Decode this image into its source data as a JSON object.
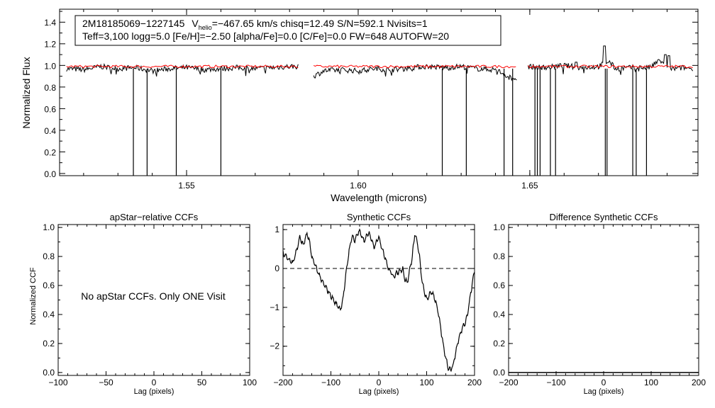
{
  "chart_data": [
    {
      "type": "line",
      "xlabel": "Wavelength (microns)",
      "ylabel": "Normalized Flux",
      "xlim": [
        1.513,
        1.699
      ],
      "ylim": [
        -0.02,
        1.52
      ],
      "xticks": [
        1.55,
        1.6,
        1.65
      ],
      "xtick_labels": [
        "1.55",
        "1.60",
        "1.65"
      ],
      "yticks": [
        0.0,
        0.2,
        0.4,
        0.6,
        0.8,
        1.0,
        1.2,
        1.4
      ],
      "ytick_labels": [
        "0.0",
        "0.2",
        "0.4",
        "0.6",
        "0.8",
        "1.0",
        "1.2",
        "1.4"
      ],
      "info_box": {
        "star_id": "2M18185069−1227145",
        "v_label": "V",
        "v_sub": "helio",
        "v_rest": "=−467.65 km/s  chisq=12.49  S/N=592.1  Nvisits=1",
        "line2": "Teff=3,100 logg=5.0 [Fe/H]=−2.50 [alpha/Fe]=0.0 [C/Fe]=0.0 FW=648 AUTOFW=20"
      },
      "chips": [
        [
          1.515,
          1.5825
        ],
        [
          1.587,
          1.6462
        ],
        [
          1.6495,
          1.6975
        ]
      ],
      "observed_anchors": [
        [
          [
            1.515,
            0.97
          ],
          [
            1.52,
            0.96
          ],
          [
            1.525,
            0.99
          ],
          [
            1.53,
            0.97
          ],
          [
            1.535,
            0.98
          ],
          [
            1.54,
            0.95
          ],
          [
            1.545,
            0.97
          ],
          [
            1.55,
            0.98
          ],
          [
            1.555,
            0.96
          ],
          [
            1.56,
            0.97
          ],
          [
            1.565,
            0.98
          ],
          [
            1.57,
            0.97
          ],
          [
            1.575,
            0.98
          ],
          [
            1.58,
            0.99
          ],
          [
            1.5825,
            0.99
          ]
        ],
        [
          [
            1.587,
            0.9
          ],
          [
            1.59,
            0.95
          ],
          [
            1.595,
            0.96
          ],
          [
            1.6,
            0.95
          ],
          [
            1.605,
            0.97
          ],
          [
            1.61,
            0.96
          ],
          [
            1.615,
            0.98
          ],
          [
            1.62,
            0.99
          ],
          [
            1.625,
            0.98
          ],
          [
            1.63,
            0.99
          ],
          [
            1.635,
            0.97
          ],
          [
            1.64,
            0.96
          ],
          [
            1.642,
            0.93
          ],
          [
            1.644,
            0.89
          ],
          [
            1.646,
            0.88
          ]
        ],
        [
          [
            1.6495,
            0.99
          ],
          [
            1.655,
            0.98
          ],
          [
            1.66,
            1.0
          ],
          [
            1.665,
            0.98
          ],
          [
            1.67,
            0.99
          ],
          [
            1.673,
            1.04
          ],
          [
            1.675,
            0.97
          ],
          [
            1.68,
            0.98
          ],
          [
            1.685,
            0.98
          ],
          [
            1.688,
            1.05
          ],
          [
            1.69,
            0.96
          ],
          [
            1.695,
            0.98
          ],
          [
            1.6975,
            0.97
          ]
        ]
      ],
      "emission_spikes": [
        [
          1.6718,
          1.18
        ],
        [
          1.6905,
          1.09
        ],
        [
          1.6895,
          1.1
        ],
        [
          1.6635,
          1.03
        ]
      ],
      "bad_pixel_dips": [
        1.5345,
        1.5385,
        1.547,
        1.56,
        1.6245,
        1.6315,
        1.6425,
        1.645,
        1.6515,
        1.6522,
        1.653,
        1.656,
        1.6575,
        1.672,
        1.6725,
        1.68,
        1.681,
        1.684
      ],
      "model": {
        "name": "model",
        "value": 0.99,
        "color": "#ff0000"
      }
    },
    {
      "type": "line",
      "title": "apStar−relative CCFs",
      "xlabel": "Lag (pixels)",
      "ylabel": "Normalized CCF",
      "xlim": [
        -100,
        100
      ],
      "ylim": [
        -0.02,
        1.02
      ],
      "xticks": [
        -100,
        -50,
        0,
        50,
        100
      ],
      "xtick_labels": [
        "−100",
        "−50",
        "0",
        "50",
        "100"
      ],
      "yticks": [
        0.0,
        0.2,
        0.4,
        0.6,
        0.8,
        1.0
      ],
      "ytick_labels": [
        "0.0",
        "0.2",
        "0.4",
        "0.6",
        "0.8",
        "1.0"
      ],
      "annotation": "No apStar CCFs.  Only ONE Visit"
    },
    {
      "type": "line",
      "title": "Synthetic CCFs",
      "xlabel": "Lag (pixels)",
      "xlim": [
        -200,
        200
      ],
      "ylim": [
        -2.75,
        1.13
      ],
      "xticks": [
        -200,
        -100,
        0,
        100,
        200
      ],
      "xtick_labels": [
        "−200",
        "−100",
        "0",
        "100",
        "200"
      ],
      "yticks": [
        -2,
        -1,
        0,
        1
      ],
      "ytick_labels": [
        "−2",
        "−1",
        "0",
        "1"
      ],
      "zero_line": 0,
      "series": [
        {
          "x": [
            -200,
            -190,
            -180,
            -172,
            -165,
            -158,
            -150,
            -145,
            -140,
            -130,
            -120,
            -110,
            -100,
            -90,
            -80,
            -75,
            -70,
            -65,
            -60,
            -55,
            -50,
            -45,
            -40,
            -35,
            -30,
            -25,
            -20,
            -15,
            -10,
            -5,
            0,
            5,
            10,
            15,
            20,
            25,
            30,
            40,
            50,
            55,
            60,
            65,
            70,
            75,
            80,
            85,
            90,
            95,
            100,
            105,
            110,
            115,
            120,
            125,
            130,
            135,
            140,
            145,
            150,
            155,
            160,
            165,
            170,
            175,
            180,
            185,
            190,
            195,
            200
          ],
          "y": [
            0.4,
            0.25,
            0.15,
            0.45,
            0.8,
            0.6,
            0.9,
            0.7,
            0.3,
            0.0,
            -0.3,
            -0.5,
            -0.7,
            -0.9,
            -1.05,
            -0.8,
            -0.3,
            0.2,
            0.6,
            0.85,
            0.7,
            0.9,
            0.95,
            0.8,
            0.7,
            0.85,
            0.9,
            0.75,
            0.55,
            0.7,
            0.8,
            0.6,
            0.4,
            0.2,
            0.0,
            -0.1,
            -0.2,
            -0.1,
            0.0,
            -0.3,
            -0.35,
            0.0,
            0.3,
            0.9,
            0.7,
            0.3,
            -0.3,
            -0.6,
            -0.8,
            -0.7,
            -0.6,
            -0.7,
            -0.9,
            -1.2,
            -1.6,
            -2.0,
            -2.3,
            -2.55,
            -2.6,
            -2.5,
            -2.2,
            -1.9,
            -1.7,
            -1.5,
            -1.4,
            -1.2,
            -0.8,
            -0.4,
            -0.05
          ]
        }
      ]
    },
    {
      "type": "line",
      "title": "Difference Synthetic CCFs",
      "xlabel": "Lag (pixels)",
      "xlim": [
        -200,
        200
      ],
      "ylim": [
        -0.02,
        1.02
      ],
      "xticks": [
        -200,
        -100,
        0,
        100,
        200
      ],
      "xtick_labels": [
        "−200",
        "−100",
        "0",
        "100",
        "200"
      ],
      "yticks": [
        0.0,
        0.2,
        0.4,
        0.6,
        0.8,
        1.0
      ],
      "ytick_labels": [
        "0.0",
        "0.2",
        "0.4",
        "0.6",
        "0.8",
        "1.0"
      ],
      "series": [
        {
          "x": [
            -200,
            200
          ],
          "y": [
            0.0,
            0.0
          ]
        }
      ]
    }
  ]
}
